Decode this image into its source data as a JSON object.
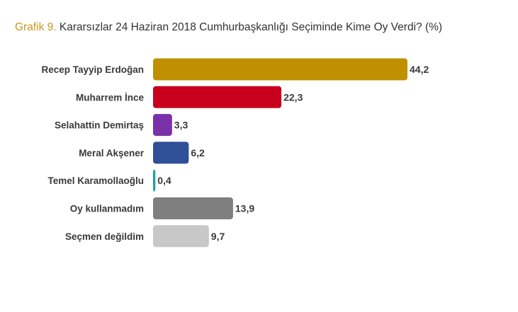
{
  "title": {
    "prefix": "Grafik 9.",
    "text": "Kararsızlar 24 Haziran 2018 Cumhurbaşkanlığı Seçiminde Kime Oy Verdi? (%)"
  },
  "chart_data": {
    "type": "bar",
    "orientation": "horizontal",
    "title": "Grafik 9. Kararsızlar 24 Haziran 2018 Cumhurbaşkanlığı Seçiminde Kime Oy Verdi? (%)",
    "categories": [
      "Recep Tayyip Erdoğan",
      "Muharrem İnce",
      "Selahattin Demirtaş",
      "Meral Akşener",
      "Temel Karamollaoğlu",
      "Oy kullanmadım",
      "Seçmen değildim"
    ],
    "values": [
      44.2,
      22.3,
      3.3,
      6.2,
      0.4,
      13.9,
      9.7
    ],
    "value_labels": [
      "44,2",
      "22,3",
      "3,3",
      "6,2",
      "0,4",
      "13,9",
      "9,7"
    ],
    "colors": [
      "#c09000",
      "#c8001e",
      "#7a30a8",
      "#2f4f96",
      "#1fa39a",
      "#7f7f7f",
      "#c8c8c8"
    ],
    "xlim": [
      0,
      44.2
    ],
    "grid": false,
    "legend": "none"
  }
}
